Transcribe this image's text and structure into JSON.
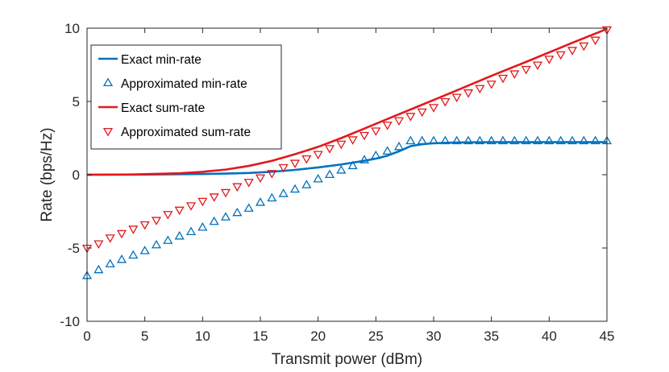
{
  "chart_data": {
    "type": "line",
    "title": "",
    "xlabel": "Transmit power (dBm)",
    "ylabel": "Rate (bps/Hz)",
    "xlim": [
      0,
      45
    ],
    "ylim": [
      -10,
      10
    ],
    "xticks": [
      0,
      5,
      10,
      15,
      20,
      25,
      30,
      35,
      40,
      45
    ],
    "yticks": [
      -10,
      -5,
      0,
      5,
      10
    ],
    "grid": false,
    "legend_position": "top-left",
    "series": [
      {
        "name": "Exact min-rate",
        "style": "line",
        "color": "#0072bd",
        "x": [
          0,
          5,
          10,
          12,
          14,
          16,
          18,
          20,
          22,
          24,
          25,
          26,
          27,
          28,
          29,
          30,
          32,
          35,
          40,
          45
        ],
        "y": [
          0,
          0.01,
          0.05,
          0.08,
          0.12,
          0.2,
          0.33,
          0.5,
          0.7,
          0.95,
          1.1,
          1.3,
          1.6,
          1.95,
          2.08,
          2.15,
          2.2,
          2.22,
          2.22,
          2.22
        ]
      },
      {
        "name": "Approximated min-rate",
        "style": "marker-triangle-up",
        "color": "#0072bd",
        "x": [
          0,
          1,
          2,
          3,
          4,
          5,
          6,
          7,
          8,
          9,
          10,
          11,
          12,
          13,
          14,
          15,
          16,
          17,
          18,
          19,
          20,
          21,
          22,
          23,
          24,
          25,
          26,
          27,
          28,
          29,
          30,
          31,
          32,
          33,
          34,
          35,
          36,
          37,
          38,
          39,
          40,
          41,
          42,
          43,
          44,
          45
        ],
        "y": [
          -6.9,
          -6.5,
          -6.1,
          -5.8,
          -5.5,
          -5.2,
          -4.8,
          -4.5,
          -4.2,
          -3.9,
          -3.6,
          -3.2,
          -2.9,
          -2.6,
          -2.3,
          -1.9,
          -1.6,
          -1.3,
          -1.0,
          -0.7,
          -0.3,
          0.0,
          0.3,
          0.6,
          1.0,
          1.3,
          1.6,
          1.9,
          2.3,
          2.3,
          2.3,
          2.3,
          2.3,
          2.3,
          2.3,
          2.3,
          2.3,
          2.3,
          2.3,
          2.3,
          2.3,
          2.3,
          2.3,
          2.3,
          2.3,
          2.3
        ]
      },
      {
        "name": "Exact sum-rate",
        "style": "line",
        "color": "#e3181b",
        "x": [
          0,
          4,
          8,
          10,
          12,
          14,
          16,
          18,
          20,
          22,
          24,
          26,
          28,
          30,
          32,
          35,
          38,
          40,
          42,
          45
        ],
        "y": [
          0,
          0.02,
          0.1,
          0.2,
          0.35,
          0.6,
          0.95,
          1.4,
          1.9,
          2.5,
          3.15,
          3.8,
          4.45,
          5.1,
          5.75,
          6.75,
          7.7,
          8.35,
          9.0,
          9.95
        ]
      },
      {
        "name": "Approximated sum-rate",
        "style": "marker-triangle-down",
        "color": "#e3181b",
        "x": [
          0,
          1,
          2,
          3,
          4,
          5,
          6,
          7,
          8,
          9,
          10,
          11,
          12,
          13,
          14,
          15,
          16,
          17,
          18,
          19,
          20,
          21,
          22,
          23,
          24,
          25,
          26,
          27,
          28,
          29,
          30,
          31,
          32,
          33,
          34,
          35,
          36,
          37,
          38,
          39,
          40,
          41,
          42,
          43,
          44,
          45
        ],
        "y": [
          -5.0,
          -4.7,
          -4.3,
          -4.0,
          -3.7,
          -3.4,
          -3.1,
          -2.7,
          -2.4,
          -2.1,
          -1.8,
          -1.5,
          -1.2,
          -0.8,
          -0.5,
          -0.2,
          0.1,
          0.5,
          0.8,
          1.1,
          1.4,
          1.8,
          2.1,
          2.4,
          2.7,
          3.0,
          3.4,
          3.7,
          4.0,
          4.3,
          4.6,
          5.0,
          5.3,
          5.6,
          5.9,
          6.2,
          6.6,
          6.9,
          7.2,
          7.5,
          7.9,
          8.2,
          8.5,
          8.8,
          9.2,
          9.9
        ]
      }
    ]
  }
}
